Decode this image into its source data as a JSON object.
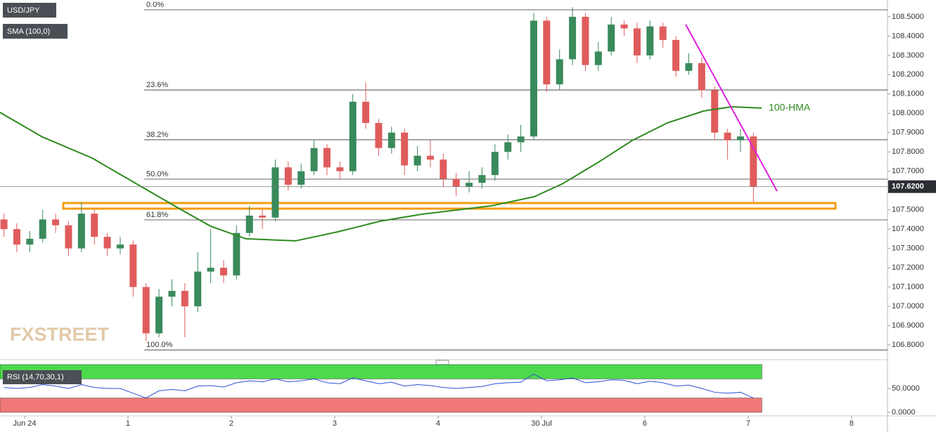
{
  "chart_data": [
    {
      "type": "candlestick",
      "title": "USD/JPY",
      "indicator_label": "SMA (100,0)",
      "watermark": "FXSTREET",
      "x": [
        -0.2,
        -0.075,
        0.05,
        0.175,
        0.3,
        0.425,
        0.55,
        0.675,
        0.8,
        0.925,
        1.05,
        1.175,
        1.3,
        1.425,
        1.55,
        1.675,
        1.8,
        1.925,
        2.05,
        2.175,
        2.3,
        2.425,
        2.55,
        2.675,
        2.8,
        2.925,
        3.05,
        3.175,
        3.3,
        3.425,
        3.55,
        3.675,
        3.8,
        3.925,
        4.05,
        4.175,
        4.3,
        4.425,
        4.55,
        4.675,
        4.8,
        4.925,
        5.05,
        5.175,
        5.3,
        5.425,
        5.55,
        5.675,
        5.8,
        5.925,
        6.05,
        6.175,
        6.3,
        6.425,
        6.55,
        6.675,
        6.8,
        6.925,
        7.05
      ],
      "open": [
        107.45,
        107.4,
        107.32,
        107.35,
        107.45,
        107.42,
        107.3,
        107.48,
        107.36,
        107.3,
        107.32,
        107.1,
        106.86,
        107.05,
        107.08,
        107.0,
        107.18,
        107.2,
        107.16,
        107.38,
        107.47,
        107.46,
        107.72,
        107.63,
        107.7,
        107.82,
        107.72,
        107.7,
        108.06,
        107.95,
        107.82,
        107.9,
        107.73,
        107.78,
        107.76,
        107.66,
        107.62,
        107.64,
        107.68,
        107.8,
        107.85,
        107.88,
        108.48,
        108.15,
        108.28,
        108.5,
        108.25,
        108.32,
        108.46,
        108.44,
        108.3,
        108.45,
        108.38,
        108.22,
        108.26,
        108.12,
        107.9,
        107.86,
        107.88
      ],
      "high": [
        107.48,
        107.43,
        107.39,
        107.5,
        107.48,
        107.44,
        107.54,
        107.5,
        107.38,
        107.36,
        107.34,
        107.12,
        107.09,
        107.14,
        107.12,
        107.28,
        107.4,
        107.24,
        107.42,
        107.52,
        107.5,
        107.76,
        107.75,
        107.74,
        107.86,
        107.84,
        107.75,
        108.1,
        108.16,
        107.97,
        107.93,
        107.92,
        107.83,
        107.86,
        107.79,
        107.69,
        107.7,
        107.72,
        107.84,
        107.89,
        107.94,
        108.52,
        108.5,
        108.33,
        108.55,
        108.52,
        108.37,
        108.5,
        108.48,
        108.47,
        108.48,
        108.47,
        108.4,
        108.31,
        108.29,
        108.14,
        107.92,
        107.92,
        107.9
      ],
      "low": [
        107.36,
        107.28,
        107.28,
        107.33,
        107.38,
        107.26,
        107.28,
        107.32,
        107.26,
        107.27,
        107.05,
        106.82,
        106.84,
        107.0,
        106.84,
        106.97,
        107.12,
        107.12,
        107.14,
        107.36,
        107.4,
        107.44,
        107.6,
        107.61,
        107.68,
        107.68,
        107.66,
        107.68,
        107.92,
        107.78,
        107.79,
        107.68,
        107.7,
        107.72,
        107.62,
        107.57,
        107.59,
        107.61,
        107.65,
        107.76,
        107.8,
        107.86,
        108.11,
        108.12,
        108.25,
        108.22,
        108.22,
        108.3,
        108.4,
        108.26,
        108.28,
        108.34,
        108.19,
        108.2,
        108.08,
        107.86,
        107.76,
        107.8,
        107.54
      ],
      "close": [
        107.4,
        107.32,
        107.35,
        107.45,
        107.42,
        107.3,
        107.48,
        107.36,
        107.3,
        107.32,
        107.1,
        106.86,
        107.05,
        107.08,
        107.0,
        107.18,
        107.2,
        107.16,
        107.38,
        107.47,
        107.46,
        107.72,
        107.63,
        107.7,
        107.82,
        107.72,
        107.7,
        108.06,
        107.95,
        107.82,
        107.9,
        107.73,
        107.78,
        107.76,
        107.66,
        107.62,
        107.64,
        107.68,
        107.8,
        107.85,
        107.88,
        108.48,
        108.15,
        108.28,
        108.5,
        108.25,
        108.32,
        108.46,
        108.44,
        108.3,
        108.45,
        108.38,
        108.22,
        108.26,
        108.12,
        107.9,
        107.86,
        107.88,
        107.62
      ],
      "up_color": "#3a8a5c",
      "down_color": "#e05c5c",
      "xlim": [
        -0.238,
        8.347
      ],
      "xticks": [
        {
          "value": 0,
          "label": "Jun 24"
        },
        1,
        2,
        3,
        4,
        5,
        {
          "value": 5,
          "label": "30 Jul"
        },
        6,
        7,
        8
      ],
      "ylim": [
        106.731,
        108.587
      ],
      "yticks": [
        {
          "value": 106.8,
          "label": "106.8000"
        },
        {
          "value": 106.9,
          "label": "106.9000"
        },
        {
          "value": 107.0,
          "label": "107.0000"
        },
        {
          "value": 107.1,
          "label": "107.1000"
        },
        {
          "value": 107.2,
          "label": "107.2000"
        },
        {
          "value": 107.3,
          "label": "107.3000"
        },
        {
          "value": 107.4,
          "label": "107.4000"
        },
        {
          "value": 107.5,
          "label": "107.5000"
        },
        {
          "value": 107.7,
          "label": "107.7000"
        },
        {
          "value": 107.8,
          "label": "107.8000"
        },
        {
          "value": 107.9,
          "label": "107.9000"
        },
        {
          "value": 108.0,
          "label": "108.0000"
        },
        {
          "value": 108.1,
          "label": "108.1000"
        },
        {
          "value": 108.2,
          "label": "108.2000"
        },
        {
          "value": 108.3,
          "label": "108.3000"
        },
        {
          "value": 108.4,
          "label": "108.4000"
        },
        {
          "value": 108.5,
          "label": "108.5000"
        }
      ],
      "series": [
        {
          "name": "100-HMA",
          "color": "#2e8b1e",
          "x": [
            -0.24,
            0.17,
            0.65,
            1.12,
            1.53,
            1.8,
            2.14,
            2.62,
            3.03,
            3.44,
            3.84,
            4.52,
            4.93,
            5.2,
            5.54,
            5.88,
            6.22,
            6.57,
            6.84,
            7.13
          ],
          "values": [
            108.005,
            107.878,
            107.769,
            107.623,
            107.496,
            107.415,
            107.35,
            107.339,
            107.386,
            107.441,
            107.477,
            107.521,
            107.568,
            107.634,
            107.743,
            107.86,
            107.951,
            108.012,
            108.034,
            108.027
          ]
        }
      ],
      "fib_levels": [
        {
          "label": "0.0%",
          "value": 108.536
        },
        {
          "label": "23.6%",
          "value": 108.121
        },
        {
          "label": "38.2%",
          "value": 107.863
        },
        {
          "label": "50.0%",
          "value": 107.659
        },
        {
          "label": "61.8%",
          "value": 107.448
        },
        {
          "label": "100.0%",
          "value": 106.774
        }
      ],
      "zone": {
        "x": [
          0.374,
          7.844
        ],
        "values": [
          107.506,
          107.535
        ],
        "color": "#f39c12"
      },
      "trendline": {
        "x": [
          6.395,
          7.279
        ],
        "values": [
          108.46,
          107.597
        ],
        "color": "#e020e0"
      },
      "last_price": {
        "value": 107.62,
        "label": "107.6200"
      }
    },
    {
      "type": "line",
      "title": "RSI (14,70,30,1)",
      "color": "#2c4fd8",
      "values": [
        52,
        50,
        52,
        58,
        55,
        50,
        58,
        52,
        50,
        50,
        40,
        30,
        45,
        48,
        45,
        55,
        56,
        53,
        62,
        66,
        64,
        70,
        64,
        66,
        70,
        62,
        60,
        72,
        66,
        60,
        63,
        55,
        58,
        56,
        52,
        50,
        52,
        54,
        60,
        62,
        63,
        80,
        66,
        68,
        72,
        62,
        64,
        68,
        67,
        60,
        65,
        62,
        55,
        57,
        50,
        42,
        40,
        42,
        30
      ],
      "ylim": [
        0,
        100
      ],
      "yticks": [
        {
          "value": 50,
          "label": "50.0000"
        },
        {
          "value": 0,
          "label": "0.0000"
        }
      ],
      "overbought": 70,
      "oversold": 30,
      "overbought_color": "#4cd94c",
      "oversold_color": "#f07878"
    }
  ]
}
